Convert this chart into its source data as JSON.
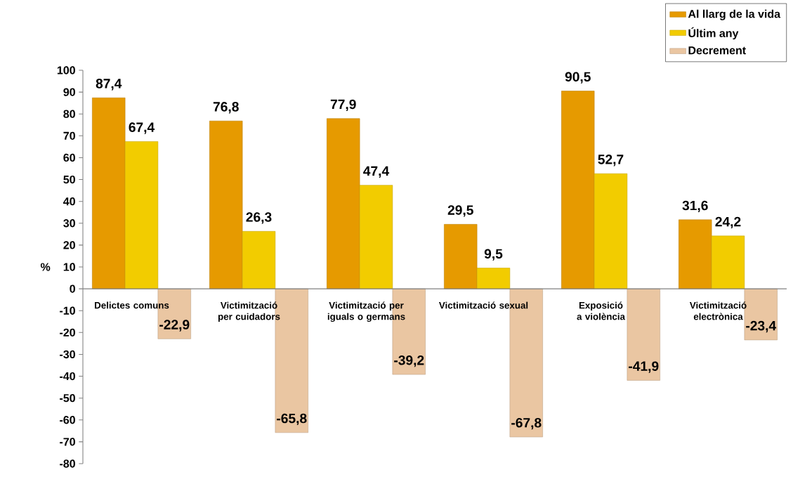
{
  "chart_data": {
    "type": "bar",
    "ylabel": "%",
    "categories": [
      "Delictes comuns",
      "Victimització per cuidadors",
      "Victimització per iguals o germans",
      "Victimització sexual",
      "Exposició a violència",
      "Victimització electrònica"
    ],
    "series": [
      {
        "name": "Al llarg de la vida",
        "color": "#e69a00",
        "values": [
          87.4,
          76.8,
          77.9,
          29.5,
          90.5,
          31.6
        ],
        "value_labels": [
          "87,4",
          "76,8",
          "77,9",
          "29,5",
          "90,5",
          "31,6"
        ]
      },
      {
        "name": "Últim any",
        "color": "#f2cc00",
        "values": [
          67.4,
          26.3,
          47.4,
          9.5,
          52.7,
          24.2
        ],
        "value_labels": [
          "67,4",
          "26,3",
          "47,4",
          "9,5",
          "52,7",
          "24,2"
        ]
      },
      {
        "name": "Decrement",
        "color": "#eac6a2",
        "values": [
          -22.9,
          -65.8,
          -39.2,
          -67.8,
          -41.9,
          -23.4
        ],
        "value_labels": [
          "-22,9",
          "-65,8",
          "-39,2",
          "-67,8",
          "-41,9",
          "-23,4"
        ]
      }
    ],
    "ylim": [
      -80,
      100
    ],
    "yticks": [
      -80,
      -70,
      -60,
      -50,
      -40,
      -30,
      -20,
      -10,
      0,
      10,
      20,
      30,
      40,
      50,
      60,
      70,
      80,
      90,
      100
    ],
    "legend": "top right",
    "grid": false
  }
}
